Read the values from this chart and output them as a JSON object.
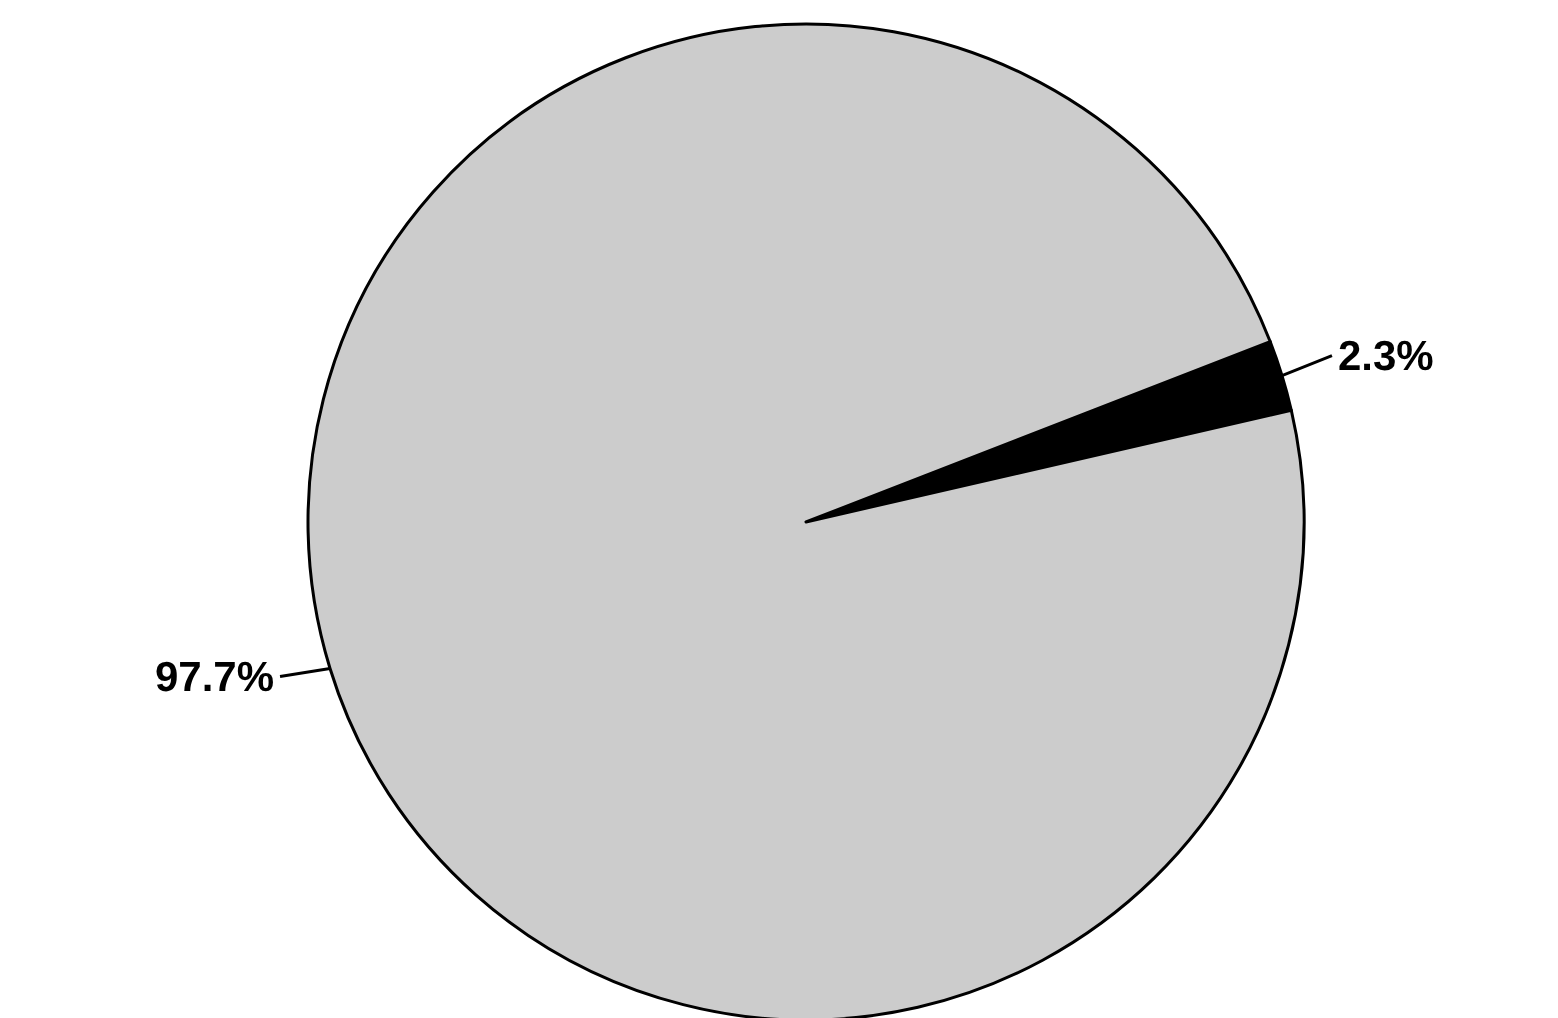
{
  "chart_data": {
    "type": "pie",
    "categories": [
      null,
      null
    ],
    "values": [
      2.3,
      97.7
    ],
    "colors": [
      "#000000",
      "#cccccc"
    ],
    "value_labels": [
      "2.3%",
      "97.7%"
    ]
  }
}
